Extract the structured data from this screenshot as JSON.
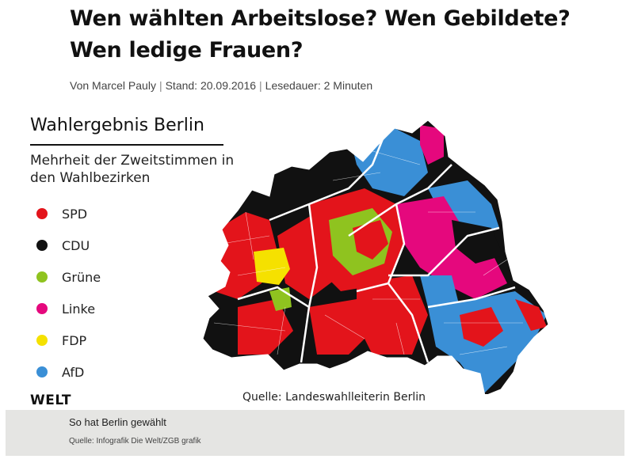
{
  "article": {
    "headline": "Wen wählten Arbeitslose? Wen Gebildete? Wen ledige Frauen?",
    "byline": {
      "author": "Von Marcel Pauly",
      "date": "Stand: 20.09.2016",
      "reading_time": "Lesedauer: 2 Minuten"
    }
  },
  "graphic": {
    "title": "Wahlergebnis Berlin",
    "subtitle": "Mehrheit der Zweitstimmen in den Wahlbezirken",
    "legend": [
      {
        "label": "SPD",
        "color": "#e3141b"
      },
      {
        "label": "CDU",
        "color": "#111111"
      },
      {
        "label": "Grüne",
        "color": "#8fc31f"
      },
      {
        "label": "Linke",
        "color": "#e5087d"
      },
      {
        "label": "FDP",
        "color": "#f5e100"
      },
      {
        "label": "AfD",
        "color": "#3a8fd6"
      }
    ],
    "source": "Quelle: Landeswahlleiterin Berlin",
    "logo": "WELT"
  },
  "caption": {
    "text": "So hat Berlin gewählt",
    "credit": "Quelle: Infografik Die Welt/ZGB grafik"
  }
}
